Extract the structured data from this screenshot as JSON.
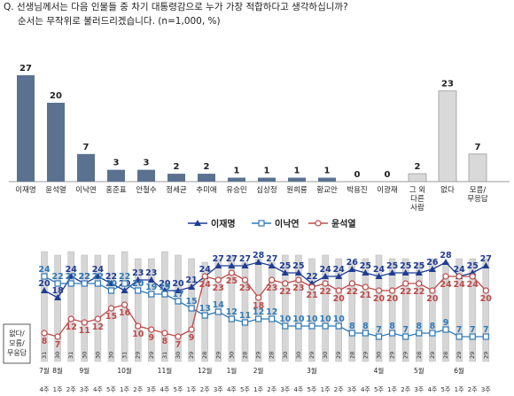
{
  "question": {
    "line1": "Q. 선생님께서는 다음 인물들 중 차기 대통령감으로 누가 가장 적합하다고 생각하십니까?",
    "line2": "순서는 무작위로 불러드리겠습니다. (n=1,000, %)"
  },
  "chart_data": [
    {
      "type": "bar",
      "categories": [
        "이재명",
        "윤석열",
        "이낙연",
        "홍준표",
        "안철수",
        "정세균",
        "추미애",
        "유승민",
        "심상정",
        "원희룡",
        "황교안",
        "박용진",
        "이광재",
        "그 외 다른 사람",
        "없다",
        "모름/무응답"
      ],
      "category_lines": [
        [
          "이재명"
        ],
        [
          "윤석열"
        ],
        [
          "이낙연"
        ],
        [
          "홍준표"
        ],
        [
          "안철수"
        ],
        [
          "정세균"
        ],
        [
          "추미애"
        ],
        [
          "유승민"
        ],
        [
          "심상정"
        ],
        [
          "원희룡"
        ],
        [
          "황교안"
        ],
        [
          "박용진"
        ],
        [
          "이광재"
        ],
        [
          "그 외",
          "다른",
          "사람"
        ],
        [
          "없다"
        ],
        [
          "모름/",
          "무응답"
        ]
      ],
      "values": [
        27,
        20,
        7,
        3,
        3,
        2,
        2,
        1,
        1,
        1,
        1,
        0,
        0,
        2,
        23,
        7
      ],
      "ylim": [
        0,
        30
      ],
      "colors": {
        "candidate": "#5a7290",
        "other": "#d9d9d9"
      },
      "other_from_index": 13
    },
    {
      "type": "line",
      "series": [
        {
          "name": "이재명",
          "color": "#1f3c94",
          "marker": "triangle",
          "values": [
            20,
            18,
            24,
            22,
            24,
            22,
            20,
            23,
            23,
            20,
            20,
            21,
            24,
            27,
            27,
            27,
            28,
            27,
            25,
            25,
            22,
            24,
            24,
            26,
            25,
            24,
            25,
            25,
            25,
            26,
            28,
            24,
            25,
            27
          ]
        },
        {
          "name": "이낙연",
          "color": "#2f7ab8",
          "marker": "square",
          "values": [
            24,
            22,
            22,
            22,
            22,
            20,
            22,
            20,
            19,
            19,
            17,
            15,
            13,
            14,
            12,
            11,
            12,
            12,
            10,
            10,
            10,
            10,
            10,
            8,
            8,
            7,
            8,
            7,
            8,
            8,
            9,
            7,
            7,
            7
          ]
        },
        {
          "name": "윤석열",
          "color": "#c04a4a",
          "marker": "circle",
          "values": [
            8,
            7,
            12,
            11,
            12,
            15,
            16,
            10,
            9,
            8,
            7,
            9,
            24,
            23,
            25,
            23,
            18,
            23,
            22,
            23,
            21,
            22,
            20,
            22,
            21,
            20,
            20,
            22,
            22,
            20,
            24,
            24,
            24,
            20
          ]
        }
      ],
      "gray_bar_label": "없다/모름/무응답",
      "gray_bar_values": [
        31,
        30,
        31,
        30,
        30,
        30,
        31,
        29,
        29,
        31,
        30,
        29,
        28,
        29,
        30,
        28,
        29,
        28,
        30,
        30,
        29,
        30,
        29,
        28,
        29,
        30,
        29,
        29,
        28,
        29,
        28,
        29,
        29,
        29
      ],
      "months": [
        {
          "label": "7월",
          "at": 0
        },
        {
          "label": "8월",
          "at": 1
        },
        {
          "label": "9월",
          "at": 3
        },
        {
          "label": "10월",
          "at": 6
        },
        {
          "label": "11월",
          "at": 9
        },
        {
          "label": "12월",
          "at": 12
        },
        {
          "label": "1월",
          "at": 14
        },
        {
          "label": "2월",
          "at": 16
        },
        {
          "label": "3월",
          "at": 20
        },
        {
          "label": "4월",
          "at": 25
        },
        {
          "label": "5월",
          "at": 28
        },
        {
          "label": "6월",
          "at": 31
        }
      ],
      "weeks": [
        "4주",
        "1주",
        "2주",
        "3주",
        "4주",
        "5주",
        "1주",
        "2주",
        "3주",
        "4주",
        "5주",
        "1주",
        "2주",
        "3주",
        "4주",
        "5주",
        "1주",
        "2주",
        "3주",
        "4주",
        "5주",
        "1주",
        "2주",
        "3주",
        "4주",
        "5주",
        "1주",
        "2주",
        "3주",
        "4주",
        "5주",
        "1주",
        "2주",
        "3주"
      ]
    }
  ]
}
